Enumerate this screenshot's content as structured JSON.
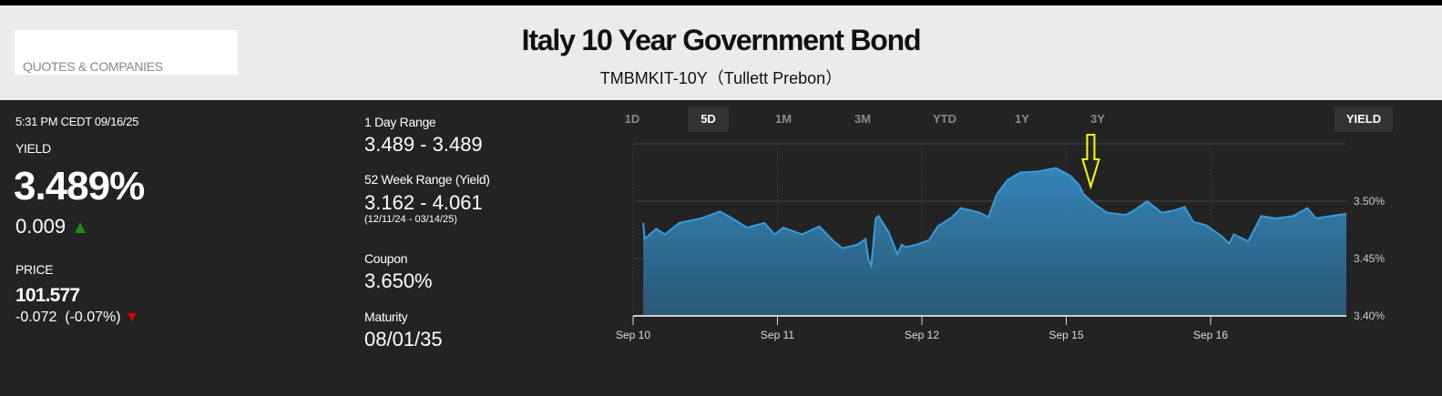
{
  "header": {
    "search_label": "QUOTES & COMPANIES",
    "title": "Italy 10 Year Government Bond",
    "subtitle": "TMBMKIT-10Y（Tullett Prebon）"
  },
  "quote": {
    "timestamp": "5:31 PM CEDT 09/16/25",
    "yield_label": "YIELD",
    "yield": "3.489%",
    "yield_change": "0.009",
    "yield_direction": "up",
    "price_label": "PRICE",
    "price": "101.577",
    "price_change": "-0.072  (-0.07%)",
    "price_direction": "down",
    "up_color": "#1e8a1e",
    "down_color": "#e00000"
  },
  "stats": {
    "day_range_label": "1 Day Range",
    "day_range": "3.489 - 3.489",
    "week52_label": "52 Week Range (Yield)",
    "week52": "3.162 - 4.061",
    "week52_dates": "(12/11/24 - 03/14/25)",
    "coupon_label": "Coupon",
    "coupon": "3.650%",
    "maturity_label": "Maturity",
    "maturity": "08/01/35"
  },
  "tabs": [
    {
      "label": "1D",
      "active": false
    },
    {
      "label": "5D",
      "active": true
    },
    {
      "label": "1M",
      "active": false
    },
    {
      "label": "3M",
      "active": false
    },
    {
      "label": "YTD",
      "active": false
    },
    {
      "label": "1Y",
      "active": false
    },
    {
      "label": "3Y",
      "active": false
    }
  ],
  "mode_button": "YIELD",
  "chart_data": {
    "type": "area",
    "title": "",
    "xlabel": "",
    "ylabel": "Yield",
    "x_ticks": [
      {
        "x": 0,
        "label": "Sep 10"
      },
      {
        "x": 1,
        "label": "Sep 11"
      },
      {
        "x": 2,
        "label": "Sep 12"
      },
      {
        "x": 3,
        "label": "Sep 15"
      },
      {
        "x": 4,
        "label": "Sep 16"
      }
    ],
    "y_ticks": [
      {
        "y": 3.4,
        "label": "3.40%"
      },
      {
        "y": 3.45,
        "label": "3.45%"
      },
      {
        "y": 3.5,
        "label": "3.50%"
      }
    ],
    "xlim": [
      0,
      4.94
    ],
    "ylim": [
      3.4,
      3.55
    ],
    "grid": true,
    "line_color": "#3a9ad9",
    "series": [
      {
        "name": "Yield",
        "x": [
          0.07,
          0.08,
          0.16,
          0.22,
          0.32,
          0.47,
          0.6,
          0.66,
          0.79,
          0.91,
          0.98,
          1.04,
          1.17,
          1.29,
          1.39,
          1.45,
          1.55,
          1.61,
          1.63,
          1.65,
          1.68,
          1.7,
          1.77,
          1.83,
          1.86,
          1.89,
          1.96,
          2.05,
          2.11,
          2.21,
          2.27,
          2.4,
          2.46,
          2.52,
          2.59,
          2.68,
          2.81,
          2.93,
          3.03,
          3.09,
          3.12,
          3.19,
          3.28,
          3.41,
          3.47,
          3.56,
          3.66,
          3.75,
          3.82,
          3.88,
          3.97,
          4.07,
          4.13,
          4.16,
          4.26,
          4.35,
          4.45,
          4.57,
          4.67,
          4.73,
          4.83,
          4.94
        ],
        "y": [
          3.481,
          3.467,
          3.476,
          3.471,
          3.481,
          3.485,
          3.491,
          3.487,
          3.477,
          3.481,
          3.471,
          3.477,
          3.471,
          3.478,
          3.465,
          3.459,
          3.462,
          3.467,
          3.449,
          3.444,
          3.485,
          3.487,
          3.473,
          3.454,
          3.462,
          3.46,
          3.462,
          3.466,
          3.478,
          3.486,
          3.494,
          3.49,
          3.486,
          3.506,
          3.518,
          3.525,
          3.526,
          3.529,
          3.522,
          3.514,
          3.506,
          3.498,
          3.49,
          3.488,
          3.492,
          3.5,
          3.49,
          3.492,
          3.495,
          3.482,
          3.479,
          3.47,
          3.463,
          3.471,
          3.465,
          3.487,
          3.485,
          3.487,
          3.494,
          3.485,
          3.487,
          3.489
        ]
      }
    ],
    "annotation": {
      "type": "arrow",
      "color": "#ffff00",
      "x": 3.17
    }
  }
}
